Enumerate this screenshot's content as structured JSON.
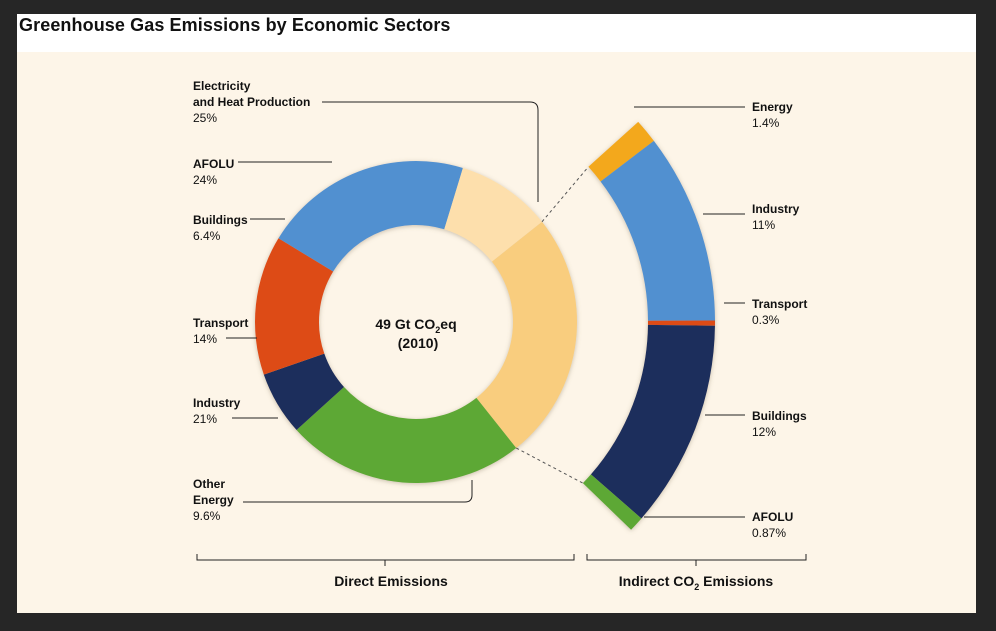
{
  "title": "Greenhouse Gas Emissions by Economic Sectors",
  "colors": {
    "panel_bg": "#fdf5e8",
    "electricity": "#f9cd7e",
    "afolu": "#5da834",
    "buildings": "#1f2f5c",
    "transport": "#dd4b17",
    "industry": "#5190d0",
    "other_energy": "#fddfac",
    "energy": "#f3a81b"
  },
  "chart_data": [
    {
      "type": "pie",
      "name": "Direct Emissions",
      "center_label_line1": "49 Gt CO",
      "center_label_sub": "2",
      "center_label_line1b": "eq",
      "center_label_line2": "(2010)",
      "axis_label": "Direct Emissions",
      "slices": [
        {
          "label_lines": [
            "Electricity",
            "and Heat Production"
          ],
          "value": 25,
          "value_label": "25%",
          "color": "#f9cd7e"
        },
        {
          "label_lines": [
            "AFOLU"
          ],
          "value": 24,
          "value_label": "24%",
          "color": "#5da834"
        },
        {
          "label_lines": [
            "Buildings"
          ],
          "value": 6.4,
          "value_label": "6.4%",
          "color": "#1f2f5c"
        },
        {
          "label_lines": [
            "Transport"
          ],
          "value": 14,
          "value_label": "14%",
          "color": "#dd4b17"
        },
        {
          "label_lines": [
            "Industry"
          ],
          "value": 21,
          "value_label": "21%",
          "color": "#5190d0"
        },
        {
          "label_lines": [
            "Other",
            "Energy"
          ],
          "value": 9.6,
          "value_label": "9.6%",
          "color": "#fddfac"
        }
      ]
    },
    {
      "type": "pie",
      "name": "Indirect CO2 Emissions",
      "axis_label_a": "Indirect CO",
      "axis_label_sub": "2",
      "axis_label_b": " Emissions",
      "slices": [
        {
          "label_lines": [
            "Energy"
          ],
          "value": 1.4,
          "value_label": "1.4%",
          "color": "#f3a81b"
        },
        {
          "label_lines": [
            "Industry"
          ],
          "value": 11,
          "value_label": "11%",
          "color": "#5190d0"
        },
        {
          "label_lines": [
            "Transport"
          ],
          "value": 0.3,
          "value_label": "0.3%",
          "color": "#dd4b17"
        },
        {
          "label_lines": [
            "Buildings"
          ],
          "value": 12,
          "value_label": "12%",
          "color": "#1f2f5c"
        },
        {
          "label_lines": [
            "AFOLU"
          ],
          "value": 0.87,
          "value_label": "0.87%",
          "color": "#5da834"
        }
      ]
    }
  ]
}
